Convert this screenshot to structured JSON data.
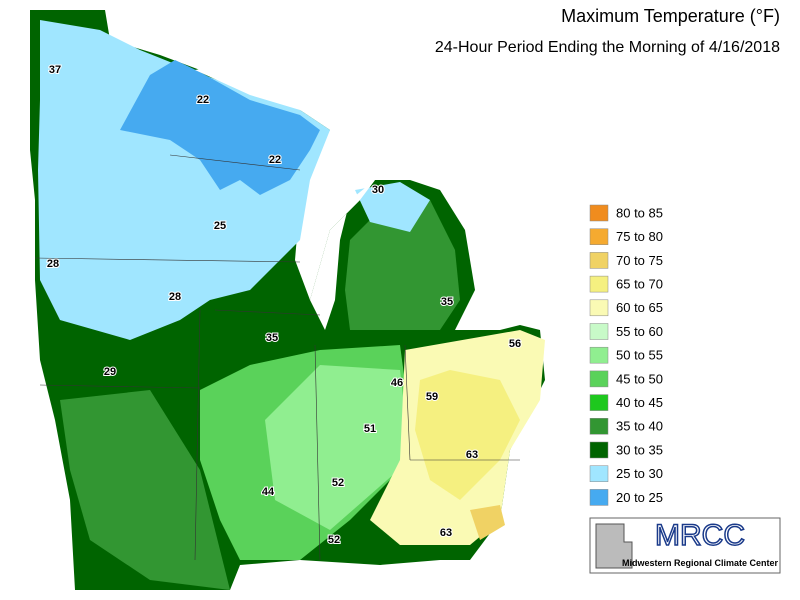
{
  "header": {
    "title": "Maximum Temperature (°F)",
    "subtitle": "24-Hour Period Ending the Morning of 4/16/2018"
  },
  "legend": [
    {
      "label": "80 to 85",
      "color": "#f08c1e"
    },
    {
      "label": "75 to 80",
      "color": "#f5aa30"
    },
    {
      "label": "70 to 75",
      "color": "#f0d264"
    },
    {
      "label": "65 to 70",
      "color": "#f5f080"
    },
    {
      "label": "60 to 65",
      "color": "#fafab4"
    },
    {
      "label": "55 to 60",
      "color": "#c8fac8"
    },
    {
      "label": "50 to 55",
      "color": "#90ee90"
    },
    {
      "label": "45 to 50",
      "color": "#5ad25a"
    },
    {
      "label": "40 to 45",
      "color": "#1ec81e"
    },
    {
      "label": "35 to 40",
      "color": "#329632"
    },
    {
      "label": "30 to 35",
      "color": "#006400"
    },
    {
      "label": "25 to 30",
      "color": "#a0e6ff"
    },
    {
      "label": "20 to 25",
      "color": "#46aaf0"
    }
  ],
  "stations": [
    37,
    22,
    22,
    30,
    25,
    28,
    28,
    35,
    35,
    56,
    29,
    46,
    59,
    51,
    63,
    52,
    44,
    63,
    52
  ],
  "logo": {
    "name": "MRCC",
    "full_name": "Midwestern Regional Climate Center"
  }
}
